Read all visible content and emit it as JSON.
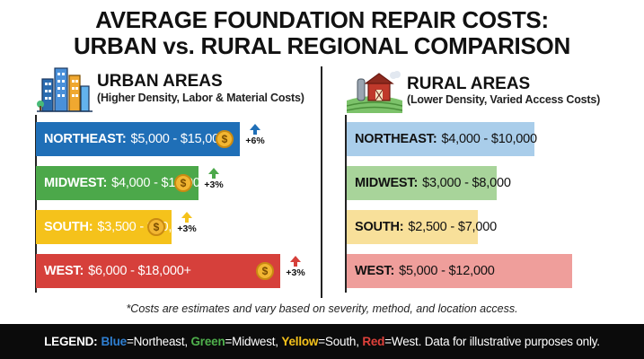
{
  "title_line1": "AVERAGE FOUNDATION REPAIR COSTS:",
  "title_line2": "URBAN vs. RURAL REGIONAL COMPARISON",
  "chart_data": [
    {
      "type": "bar",
      "title": "URBAN AREAS",
      "subtitle": "(Higher Density, Labor & Material Costs)",
      "icon": "city-buildings-icon",
      "categories": [
        "NORTHEAST",
        "MIDWEST",
        "SOUTH",
        "WEST"
      ],
      "labels": [
        "$5,000 - $15,000+",
        "$4,000 - $12,000",
        "$3,500 - $10,000",
        "$6,000 - $18,000+"
      ],
      "low": [
        5000,
        4000,
        3500,
        6000
      ],
      "high": [
        15000,
        12000,
        10000,
        18000
      ],
      "bar_extent": [
        15000,
        12000,
        10000,
        18000
      ],
      "trend": [
        "+6%",
        "+3%",
        "+3%",
        "+3%"
      ],
      "colors": [
        "#1f6fb7",
        "#4ca84a",
        "#f5c21b",
        "#d6403b"
      ],
      "trend_colors": [
        "#1f6fb7",
        "#4ca84a",
        "#f5c21b",
        "#d6403b"
      ],
      "coin_symbol": "$"
    },
    {
      "type": "bar",
      "title": "RURAL AREAS",
      "subtitle": "(Lower Density, Varied Access Costs)",
      "icon": "farm-barn-icon",
      "categories": [
        "NORTHEAST",
        "MIDWEST",
        "SOUTH",
        "WEST"
      ],
      "labels": [
        "$4,000 - $10,000",
        "$3,000 - $8,000",
        "$2,500 - $7,000",
        "$5,000 - $12,000"
      ],
      "low": [
        4000,
        3000,
        2500,
        5000
      ],
      "high": [
        10000,
        8000,
        7000,
        12000
      ],
      "bar_extent": [
        10000,
        8000,
        7000,
        12000
      ],
      "colors": [
        "#a9cdea",
        "#a8d49a",
        "#f8e09a",
        "#ef9e9b"
      ]
    }
  ],
  "footnote": "*Costs are estimates and vary based on severity, method, and location access.",
  "legend": {
    "label": "LEGEND:",
    "items": [
      {
        "name": "Blue",
        "region": "Northeast",
        "color": "#2f7fd1"
      },
      {
        "name": "Green",
        "region": "Midwest",
        "color": "#4fb04c"
      },
      {
        "name": "Yellow",
        "region": "South",
        "color": "#f5c21b"
      },
      {
        "name": "Red",
        "region": "West",
        "color": "#e0413b"
      }
    ],
    "tail": "Data for illustrative purposes only."
  }
}
